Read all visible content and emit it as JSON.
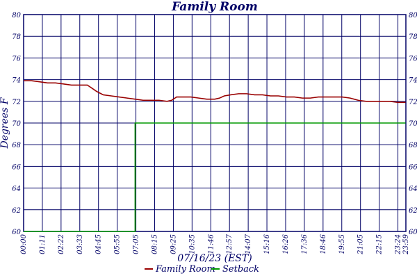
{
  "chart_data": {
    "type": "line",
    "title": "Family Room",
    "xlabel": "07/16/23 (EST)",
    "ylabel": "Degrees F",
    "ylim": [
      60,
      80
    ],
    "y_ticks": [
      60,
      62,
      64,
      66,
      68,
      70,
      72,
      74,
      76,
      78,
      80
    ],
    "x_tick_labels": [
      "00:00",
      "01:11",
      "02:22",
      "03:33",
      "04:45",
      "05:55",
      "07:05",
      "08:15",
      "09:25",
      "10:35",
      "11:46",
      "12:57",
      "14:07",
      "15:16",
      "16:26",
      "17:36",
      "18:46",
      "19:55",
      "21:05",
      "22:15",
      "23:24",
      "23:59"
    ],
    "xlim_hours": [
      0,
      24
    ],
    "grid": true,
    "legend_position": "bottom",
    "series": [
      {
        "name": "Family Room",
        "color": "#990000",
        "points": [
          [
            0.0,
            73.9
          ],
          [
            0.5,
            73.9
          ],
          [
            1.0,
            73.8
          ],
          [
            1.5,
            73.7
          ],
          [
            2.0,
            73.7
          ],
          [
            2.5,
            73.6
          ],
          [
            3.0,
            73.5
          ],
          [
            3.5,
            73.5
          ],
          [
            4.0,
            73.5
          ],
          [
            4.3,
            73.2
          ],
          [
            4.6,
            72.9
          ],
          [
            5.0,
            72.6
          ],
          [
            5.5,
            72.5
          ],
          [
            6.0,
            72.4
          ],
          [
            6.5,
            72.3
          ],
          [
            7.0,
            72.2
          ],
          [
            7.5,
            72.1
          ],
          [
            8.0,
            72.1
          ],
          [
            8.5,
            72.1
          ],
          [
            9.0,
            72.0
          ],
          [
            9.3,
            72.1
          ],
          [
            9.6,
            72.4
          ],
          [
            10.0,
            72.4
          ],
          [
            10.5,
            72.4
          ],
          [
            11.0,
            72.3
          ],
          [
            11.5,
            72.2
          ],
          [
            12.0,
            72.2
          ],
          [
            12.3,
            72.3
          ],
          [
            12.6,
            72.5
          ],
          [
            13.0,
            72.6
          ],
          [
            13.5,
            72.7
          ],
          [
            14.0,
            72.7
          ],
          [
            14.5,
            72.6
          ],
          [
            15.0,
            72.6
          ],
          [
            15.5,
            72.5
          ],
          [
            16.0,
            72.5
          ],
          [
            16.5,
            72.4
          ],
          [
            17.0,
            72.4
          ],
          [
            17.5,
            72.3
          ],
          [
            18.0,
            72.3
          ],
          [
            18.5,
            72.4
          ],
          [
            19.0,
            72.4
          ],
          [
            19.5,
            72.4
          ],
          [
            20.0,
            72.4
          ],
          [
            20.5,
            72.3
          ],
          [
            21.0,
            72.1
          ],
          [
            21.5,
            72.0
          ],
          [
            22.0,
            72.0
          ],
          [
            22.5,
            72.0
          ],
          [
            23.0,
            72.0
          ],
          [
            23.5,
            71.9
          ],
          [
            23.98,
            71.9
          ]
        ]
      },
      {
        "name": "Setback",
        "color": "#009900",
        "points": [
          [
            0.0,
            60
          ],
          [
            7.0,
            60
          ],
          [
            7.0,
            70
          ],
          [
            23.98,
            70
          ]
        ]
      }
    ]
  }
}
